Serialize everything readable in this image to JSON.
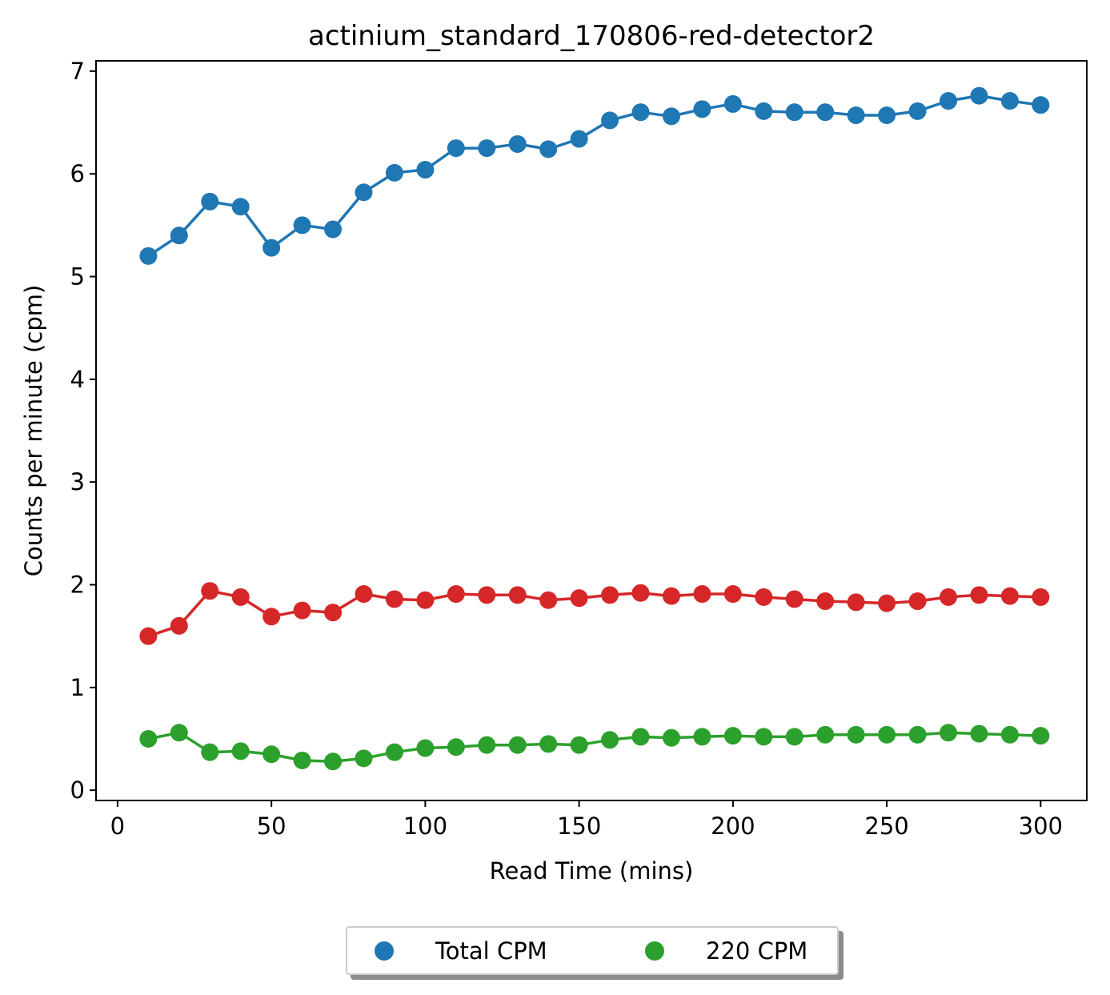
{
  "chart_data": {
    "type": "line",
    "title": "actinium_standard_170806-red-detector2",
    "xlabel": "Read Time (mins)",
    "ylabel": "Counts per minute (cpm)",
    "xlim": [
      -7,
      315
    ],
    "ylim": [
      -0.1,
      7.1
    ],
    "xticks": [
      0,
      50,
      100,
      150,
      200,
      250,
      300
    ],
    "yticks": [
      0,
      1,
      2,
      3,
      4,
      5,
      6,
      7
    ],
    "x": [
      10,
      20,
      30,
      40,
      50,
      60,
      70,
      80,
      90,
      100,
      110,
      120,
      130,
      140,
      150,
      160,
      170,
      180,
      190,
      200,
      210,
      220,
      230,
      240,
      250,
      260,
      270,
      280,
      290,
      300
    ],
    "series": [
      {
        "name": "Total CPM",
        "color": "#1f77b4",
        "values": [
          5.2,
          5.4,
          5.73,
          5.68,
          5.28,
          5.5,
          5.46,
          5.82,
          6.01,
          6.04,
          6.25,
          6.25,
          6.29,
          6.24,
          6.34,
          6.52,
          6.6,
          6.56,
          6.63,
          6.68,
          6.61,
          6.6,
          6.6,
          6.57,
          6.57,
          6.61,
          6.71,
          6.76,
          6.71,
          6.67
        ]
      },
      {
        "color": "#d62728",
        "values": [
          1.5,
          1.6,
          1.94,
          1.88,
          1.69,
          1.75,
          1.73,
          1.91,
          1.86,
          1.85,
          1.91,
          1.9,
          1.9,
          1.85,
          1.87,
          1.9,
          1.92,
          1.89,
          1.91,
          1.91,
          1.88,
          1.86,
          1.84,
          1.83,
          1.82,
          1.84,
          1.88,
          1.9,
          1.89,
          1.88
        ]
      },
      {
        "name": "220 CPM",
        "color": "#2ca02c",
        "values": [
          0.5,
          0.56,
          0.37,
          0.38,
          0.35,
          0.29,
          0.28,
          0.31,
          0.37,
          0.41,
          0.42,
          0.44,
          0.44,
          0.45,
          0.44,
          0.49,
          0.52,
          0.51,
          0.52,
          0.53,
          0.52,
          0.52,
          0.54,
          0.54,
          0.54,
          0.54,
          0.56,
          0.55,
          0.54,
          0.53
        ]
      }
    ],
    "legend": {
      "placement": "bottom-center-outside",
      "entries": [
        "Total CPM",
        "220 CPM"
      ]
    },
    "grid": false
  }
}
